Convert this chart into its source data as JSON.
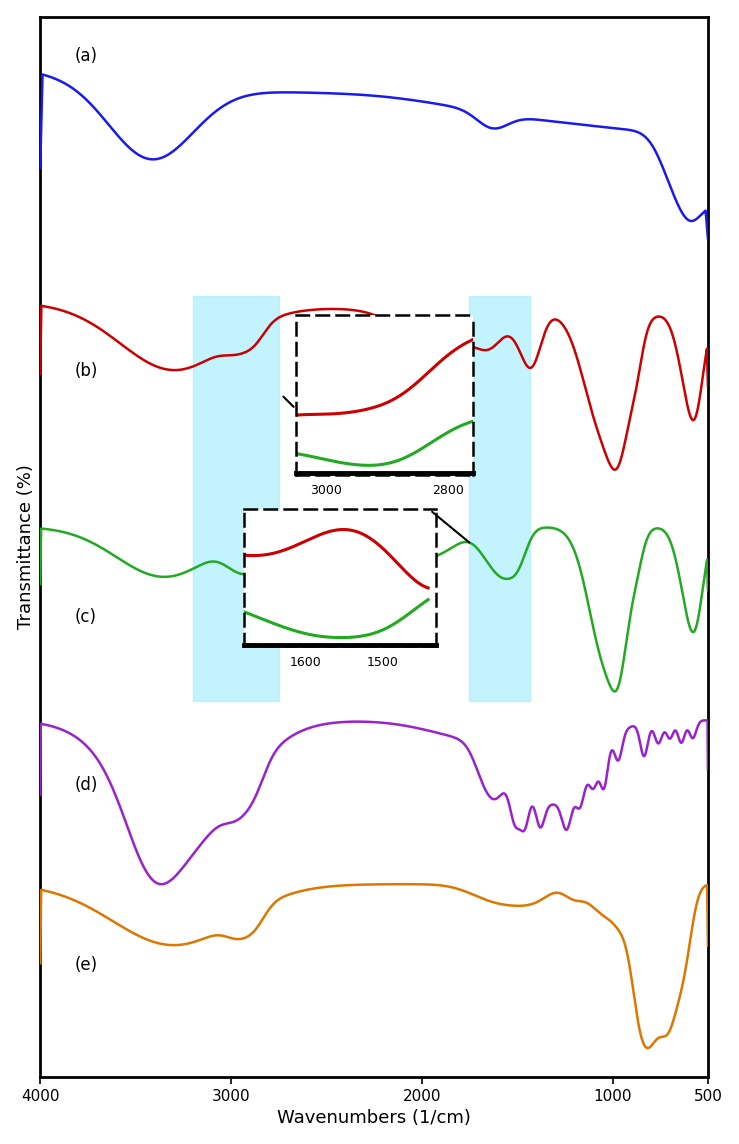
{
  "title": "",
  "xlabel": "Wavenumbers (1/cm)",
  "ylabel": "Transmittance (%)",
  "xlim": [
    4000,
    500
  ],
  "colors": {
    "a": "#1a1aee",
    "b": "#cc0000",
    "c": "#22aa22",
    "d": "#9922cc",
    "e": "#dd7700"
  },
  "labels": {
    "a": "(a)",
    "b": "(b)",
    "c": "(c)",
    "d": "(d)",
    "e": "(e)"
  },
  "highlight_box1": {
    "xmin": 3200,
    "xmax": 2750,
    "color": "#aaeeff",
    "alpha": 0.7
  },
  "highlight_box2": {
    "xmin": 1750,
    "xmax": 1430,
    "color": "#aaeeff",
    "alpha": 0.7
  },
  "background_color": "#ffffff",
  "tick_fontsize": 11,
  "label_fontsize": 13,
  "offsets": [
    4.2,
    3.0,
    1.85,
    0.85,
    0.0
  ],
  "scale": 0.85
}
